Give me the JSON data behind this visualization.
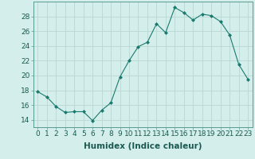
{
  "x": [
    0,
    1,
    2,
    3,
    4,
    5,
    6,
    7,
    8,
    9,
    10,
    11,
    12,
    13,
    14,
    15,
    16,
    17,
    18,
    19,
    20,
    21,
    22,
    23
  ],
  "y": [
    17.8,
    17.1,
    15.8,
    15.0,
    15.1,
    15.1,
    13.9,
    15.3,
    16.3,
    19.8,
    22.0,
    23.9,
    24.5,
    27.0,
    25.8,
    29.2,
    28.5,
    27.5,
    28.3,
    28.1,
    27.3,
    25.5,
    21.5,
    19.5
  ],
  "line_color": "#1a7a6e",
  "marker": "D",
  "marker_size": 2.0,
  "background_color": "#d4eeeb",
  "grid_color": "#b8d8d4",
  "xlabel": "Humidex (Indice chaleur)",
  "xlabel_fontsize": 7.5,
  "ylabel_ticks": [
    14,
    16,
    18,
    20,
    22,
    24,
    26,
    28
  ],
  "ylim": [
    13.0,
    30.0
  ],
  "xlim": [
    -0.5,
    23.5
  ],
  "tick_fontsize": 6.5
}
